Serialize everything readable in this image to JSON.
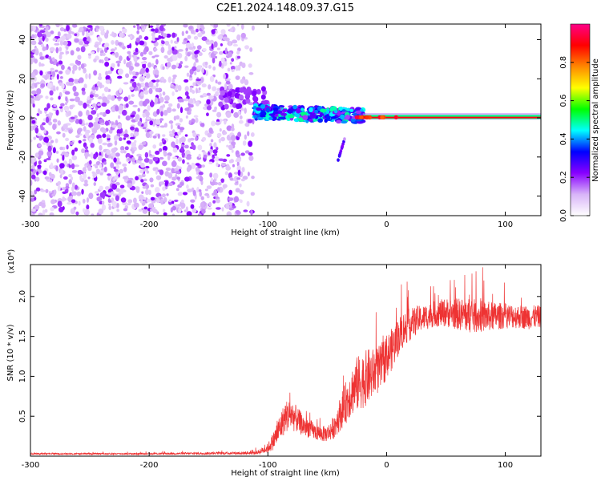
{
  "title": "C2E1.2024.148.09.37.G15",
  "chart_data": [
    {
      "type": "heatmap",
      "xlabel": "Height of straight line (km)",
      "ylabel": "Frequency (Hz)",
      "xlim": [
        -300,
        130
      ],
      "ylim": [
        -50,
        48
      ],
      "xticks": [
        -300,
        -200,
        -100,
        0,
        100
      ],
      "yticks": [
        -40,
        -20,
        0,
        20,
        40
      ],
      "colorbar": {
        "label": "Normalized spectral amplitude",
        "range": [
          0.0,
          1.0
        ],
        "ticks": [
          0.0,
          0.2,
          0.4,
          0.6,
          0.8
        ],
        "tick_labels": [
          "0.0",
          "0.2",
          "0.4",
          "0.6",
          "0.8"
        ],
        "stops": [
          "#ffffff",
          "#d8b4f8",
          "#8800ff",
          "#0000ff",
          "#00ffff",
          "#00ff00",
          "#ffff00",
          "#ff8800",
          "#ff0000",
          "#ff0088"
        ]
      },
      "regions": [
        {
          "x_range": [
            -300,
            -112
          ],
          "y_range": [
            -50,
            48
          ],
          "amplitude": 0.15
        },
        {
          "x_range": [
            -140,
            -100
          ],
          "y_range": [
            5,
            15
          ],
          "amplitude": 0.2
        },
        {
          "x_range": [
            -112,
            -20
          ],
          "y_range": [
            -1,
            8
          ],
          "amplitude": 0.35
        },
        {
          "x_range": [
            -45,
            -35
          ],
          "y_range": [
            -20,
            -10
          ],
          "amplitude": 0.3
        },
        {
          "x_range": [
            -20,
            130
          ],
          "y_range": [
            -1,
            2
          ],
          "amplitude": 0.95
        }
      ],
      "grid": false
    },
    {
      "type": "line",
      "xlabel": "Height of straight line (km)",
      "ylabel": "SNR (10 * v/v)",
      "y_multiplier": "(x10⁴)",
      "xlim": [
        -300,
        130
      ],
      "ylim": [
        0,
        2.4
      ],
      "xticks": [
        -300,
        -200,
        -100,
        0,
        100
      ],
      "yticks": [
        0.5,
        1.0,
        1.5,
        2.0
      ],
      "ytick_labels": [
        "0.5",
        "1.0",
        "1.5",
        "2.0"
      ],
      "color": "#ee3333",
      "envelope": {
        "x": [
          -300,
          -200,
          -110,
          -100,
          -95,
          -90,
          -85,
          -80,
          -75,
          -70,
          -65,
          -60,
          -55,
          -50,
          -45,
          -40,
          -35,
          -30,
          -25,
          -20,
          -15,
          -10,
          -5,
          0,
          5,
          10,
          15,
          20,
          25,
          30,
          35,
          40,
          50,
          60,
          70,
          80,
          90,
          100,
          110,
          120,
          130
        ],
        "mean": [
          0.03,
          0.03,
          0.04,
          0.1,
          0.2,
          0.35,
          0.5,
          0.52,
          0.45,
          0.38,
          0.35,
          0.3,
          0.28,
          0.28,
          0.35,
          0.5,
          0.65,
          0.8,
          0.9,
          0.95,
          1.0,
          1.05,
          1.1,
          1.25,
          1.35,
          1.5,
          1.6,
          1.65,
          1.7,
          1.73,
          1.75,
          1.78,
          1.8,
          1.78,
          1.76,
          1.75,
          1.75,
          1.76,
          1.75,
          1.74,
          1.75
        ],
        "noise": [
          0.01,
          0.01,
          0.02,
          0.06,
          0.12,
          0.18,
          0.2,
          0.2,
          0.16,
          0.14,
          0.12,
          0.1,
          0.1,
          0.1,
          0.14,
          0.2,
          0.26,
          0.3,
          0.35,
          0.35,
          0.35,
          0.3,
          0.3,
          0.28,
          0.26,
          0.24,
          0.22,
          0.2,
          0.18,
          0.16,
          0.16,
          0.16,
          0.18,
          0.2,
          0.22,
          0.2,
          0.18,
          0.16,
          0.15,
          0.15,
          0.14
        ]
      }
    }
  ]
}
